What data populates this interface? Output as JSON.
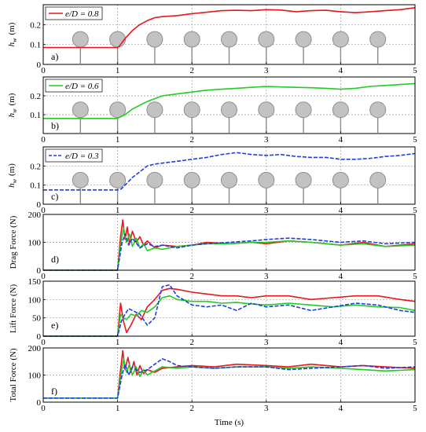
{
  "chart_data": [
    {
      "type": "line",
      "panel_label": "a)",
      "ylabel": "h_w (m)",
      "ylabel_main": "h",
      "ylabel_sub": "w",
      "ylabel_unit": "(m)",
      "ylim": [
        0,
        0.3
      ],
      "xlim": [
        0,
        5
      ],
      "yticks": [
        0,
        0.1,
        0.2
      ],
      "ytick_labels": [
        "0",
        "0.1",
        "0.2"
      ],
      "xticks": [
        0,
        1,
        2,
        3,
        4,
        5
      ],
      "xtick_labels": [
        "0",
        "1",
        "2",
        "3",
        "4",
        "5"
      ],
      "grid": true,
      "legend_position": "top-left",
      "cylinder_count": 9,
      "series": [
        {
          "name": "e/D = 0.8",
          "color": "#e8171c",
          "style": "solid",
          "x": [
            0,
            0.5,
            1.0,
            1.02,
            1.1,
            1.2,
            1.3,
            1.4,
            1.5,
            1.6,
            1.8,
            2.0,
            2.2,
            2.4,
            2.6,
            2.8,
            3.0,
            3.2,
            3.4,
            3.6,
            3.8,
            4.0,
            4.2,
            4.4,
            4.6,
            4.8,
            5.0
          ],
          "y": [
            0.085,
            0.085,
            0.085,
            0.09,
            0.13,
            0.17,
            0.2,
            0.22,
            0.235,
            0.24,
            0.245,
            0.255,
            0.262,
            0.27,
            0.272,
            0.27,
            0.275,
            0.273,
            0.265,
            0.27,
            0.272,
            0.265,
            0.26,
            0.265,
            0.27,
            0.275,
            0.285
          ]
        }
      ]
    },
    {
      "type": "line",
      "panel_label": "b)",
      "ylabel": "h_w (m)",
      "ylabel_main": "h",
      "ylabel_sub": "w",
      "ylabel_unit": "(m)",
      "ylim": [
        0,
        0.3
      ],
      "xlim": [
        0,
        5
      ],
      "yticks": [
        0.1,
        0.2
      ],
      "ytick_labels": [
        "0.1",
        "0.2"
      ],
      "xticks": [
        0,
        1,
        2,
        3,
        4,
        5
      ],
      "xtick_labels": [
        "0",
        "1",
        "2",
        "3",
        "4",
        "5"
      ],
      "grid": true,
      "legend_position": "top-left",
      "cylinder_count": 9,
      "series": [
        {
          "name": "e/D = 0.6",
          "color": "#22cc22",
          "style": "solid",
          "x": [
            0,
            0.5,
            1.0,
            1.02,
            1.1,
            1.2,
            1.3,
            1.4,
            1.5,
            1.6,
            1.8,
            2.0,
            2.2,
            2.4,
            2.6,
            2.8,
            3.0,
            3.2,
            3.4,
            3.6,
            3.8,
            4.0,
            4.2,
            4.4,
            4.6,
            4.8,
            5.0
          ],
          "y": [
            0.08,
            0.08,
            0.08,
            0.085,
            0.1,
            0.13,
            0.15,
            0.17,
            0.185,
            0.2,
            0.21,
            0.22,
            0.23,
            0.235,
            0.24,
            0.245,
            0.25,
            0.247,
            0.245,
            0.243,
            0.24,
            0.235,
            0.24,
            0.25,
            0.255,
            0.26,
            0.265
          ]
        }
      ]
    },
    {
      "type": "line",
      "panel_label": "c)",
      "ylabel": "h_w (m)",
      "ylabel_main": "h",
      "ylabel_sub": "w",
      "ylabel_unit": "(m)",
      "ylim": [
        0,
        0.3
      ],
      "xlim": [
        0,
        5
      ],
      "yticks": [
        0,
        0.1,
        0.2
      ],
      "ytick_labels": [
        "0",
        "0.1",
        "0.2"
      ],
      "xticks": [
        0,
        1,
        2,
        3,
        4,
        5
      ],
      "xtick_labels": [
        "0",
        "1",
        "2",
        "3",
        "4",
        "5"
      ],
      "grid": true,
      "legend_position": "top-left",
      "cylinder_count": 9,
      "series": [
        {
          "name": "e/D = 0.3",
          "color": "#1f3fe0",
          "style": "dashed",
          "x": [
            0,
            0.5,
            1.0,
            1.05,
            1.1,
            1.2,
            1.3,
            1.4,
            1.5,
            1.6,
            1.8,
            2.0,
            2.2,
            2.4,
            2.6,
            2.8,
            3.0,
            3.2,
            3.4,
            3.6,
            3.8,
            4.0,
            4.2,
            4.4,
            4.6,
            4.8,
            5.0
          ],
          "y": [
            0.075,
            0.075,
            0.075,
            0.08,
            0.1,
            0.14,
            0.17,
            0.2,
            0.21,
            0.215,
            0.225,
            0.235,
            0.245,
            0.26,
            0.27,
            0.26,
            0.255,
            0.26,
            0.25,
            0.245,
            0.245,
            0.235,
            0.235,
            0.24,
            0.25,
            0.255,
            0.265
          ]
        }
      ]
    },
    {
      "type": "line",
      "panel_label": "d)",
      "ylabel": "Drag Force (N)",
      "ylim": [
        0,
        200
      ],
      "xlim": [
        0,
        5
      ],
      "yticks": [
        0,
        100,
        200
      ],
      "ytick_labels": [
        "0",
        "100",
        "200"
      ],
      "xticks": [
        0,
        1,
        2,
        3,
        4,
        5
      ],
      "xtick_labels": [
        "0",
        "1",
        "2",
        "3",
        "4",
        "5"
      ],
      "grid": true,
      "series": [
        {
          "name": "e/D = 0.8",
          "color": "#e8171c",
          "style": "solid",
          "x": [
            0,
            0.5,
            1.0,
            1.04,
            1.07,
            1.1,
            1.13,
            1.16,
            1.2,
            1.25,
            1.3,
            1.35,
            1.4,
            1.5,
            1.6,
            1.8,
            2.0,
            2.2,
            2.5,
            2.8,
            3.0,
            3.3,
            3.6,
            4.0,
            4.3,
            4.6,
            5.0
          ],
          "y": [
            0,
            0,
            0,
            120,
            180,
            110,
            155,
            95,
            140,
            100,
            120,
            90,
            105,
            80,
            90,
            85,
            90,
            100,
            95,
            100,
            95,
            105,
            100,
            90,
            100,
            85,
            95
          ]
        },
        {
          "name": "e/D = 0.6",
          "color": "#22cc22",
          "style": "solid",
          "x": [
            0,
            0.5,
            1.0,
            1.05,
            1.08,
            1.12,
            1.16,
            1.2,
            1.25,
            1.3,
            1.35,
            1.4,
            1.5,
            1.6,
            1.8,
            2.0,
            2.2,
            2.5,
            2.8,
            3.0,
            3.3,
            3.6,
            4.0,
            4.3,
            4.6,
            5.0
          ],
          "y": [
            0,
            0,
            0,
            110,
            150,
            100,
            130,
            85,
            115,
            80,
            95,
            70,
            80,
            75,
            85,
            90,
            95,
            95,
            100,
            100,
            105,
            100,
            90,
            95,
            85,
            90
          ]
        },
        {
          "name": "e/D = 0.3",
          "color": "#1f3fe0",
          "style": "dashed",
          "x": [
            0,
            0.5,
            1.0,
            1.06,
            1.1,
            1.15,
            1.2,
            1.3,
            1.4,
            1.5,
            1.6,
            1.8,
            2.0,
            2.2,
            2.5,
            2.8,
            3.0,
            3.3,
            3.6,
            4.0,
            4.3,
            4.6,
            5.0
          ],
          "y": [
            0,
            0,
            0,
            100,
            130,
            90,
            115,
            80,
            95,
            85,
            90,
            80,
            90,
            95,
            100,
            105,
            110,
            115,
            110,
            100,
            105,
            95,
            100
          ]
        }
      ]
    },
    {
      "type": "line",
      "panel_label": "e)",
      "ylabel": "Lift Force (N)",
      "ylim": [
        0,
        150
      ],
      "xlim": [
        0,
        5
      ],
      "yticks": [
        0,
        50,
        100,
        150
      ],
      "ytick_labels": [
        "0",
        "50",
        "100",
        "150"
      ],
      "xticks": [
        0,
        1,
        2,
        3,
        4,
        5
      ],
      "xtick_labels": [
        "0",
        "1",
        "2",
        "3",
        "4",
        "5"
      ],
      "grid": true,
      "series": [
        {
          "name": "e/D = 0.8",
          "color": "#e8171c",
          "style": "solid",
          "x": [
            0,
            0.5,
            1.0,
            1.04,
            1.08,
            1.12,
            1.18,
            1.25,
            1.32,
            1.4,
            1.5,
            1.6,
            1.7,
            1.8,
            2.0,
            2.2,
            2.4,
            2.6,
            2.8,
            3.0,
            3.3,
            3.6,
            3.9,
            4.2,
            4.5,
            4.8,
            5.0
          ],
          "y": [
            0,
            0,
            0,
            90,
            40,
            10,
            30,
            60,
            45,
            80,
            100,
            125,
            130,
            128,
            120,
            115,
            110,
            110,
            105,
            110,
            110,
            100,
            105,
            110,
            110,
            100,
            95
          ]
        },
        {
          "name": "e/D = 0.6",
          "color": "#22cc22",
          "style": "solid",
          "x": [
            0,
            0.5,
            1.0,
            1.04,
            1.08,
            1.12,
            1.18,
            1.25,
            1.32,
            1.4,
            1.5,
            1.6,
            1.7,
            1.8,
            2.0,
            2.2,
            2.4,
            2.6,
            2.8,
            3.0,
            3.3,
            3.6,
            3.9,
            4.2,
            4.5,
            4.8,
            5.0
          ],
          "y": [
            0,
            0,
            0,
            60,
            50,
            45,
            60,
            55,
            70,
            65,
            80,
            105,
            110,
            100,
            95,
            95,
            90,
            92,
            88,
            85,
            90,
            85,
            80,
            85,
            80,
            78,
            70
          ]
        },
        {
          "name": "e/D = 0.3",
          "color": "#1f3fe0",
          "style": "dashed",
          "x": [
            0,
            0.5,
            1.0,
            1.05,
            1.1,
            1.15,
            1.2,
            1.3,
            1.4,
            1.5,
            1.6,
            1.7,
            1.8,
            2.0,
            2.2,
            2.4,
            2.6,
            2.8,
            3.0,
            3.3,
            3.6,
            3.9,
            4.2,
            4.5,
            4.8,
            5.0
          ],
          "y": [
            0,
            0,
            0,
            40,
            60,
            75,
            70,
            60,
            30,
            50,
            135,
            140,
            110,
            85,
            80,
            85,
            70,
            90,
            80,
            85,
            70,
            80,
            90,
            85,
            70,
            65
          ]
        }
      ]
    },
    {
      "type": "line",
      "panel_label": "f)",
      "ylabel": "Total Force (N)",
      "ylim": [
        0,
        200
      ],
      "xlim": [
        0,
        5
      ],
      "yticks": [
        0,
        100,
        200
      ],
      "ytick_labels": [
        "0",
        "100",
        "200"
      ],
      "xticks": [
        0,
        1,
        2,
        3,
        4,
        5
      ],
      "xtick_labels": [
        "0",
        "1",
        "2",
        "3",
        "4",
        "5"
      ],
      "xlabel": "Time (s)",
      "grid": true,
      "series": [
        {
          "name": "e/D = 0.8",
          "color": "#e8171c",
          "style": "solid",
          "x": [
            0,
            0.5,
            1.0,
            1.04,
            1.07,
            1.1,
            1.14,
            1.18,
            1.22,
            1.26,
            1.3,
            1.35,
            1.4,
            1.5,
            1.6,
            1.8,
            2.0,
            2.3,
            2.6,
            3.0,
            3.3,
            3.6,
            4.0,
            4.3,
            4.6,
            5.0
          ],
          "y": [
            15,
            15,
            15,
            120,
            190,
            120,
            165,
            110,
            150,
            100,
            135,
            105,
            120,
            110,
            125,
            130,
            135,
            130,
            140,
            135,
            130,
            140,
            130,
            135,
            130,
            125
          ]
        },
        {
          "name": "e/D = 0.6",
          "color": "#22cc22",
          "style": "solid",
          "x": [
            0,
            0.5,
            1.0,
            1.05,
            1.08,
            1.12,
            1.16,
            1.2,
            1.25,
            1.3,
            1.35,
            1.4,
            1.5,
            1.6,
            1.8,
            2.0,
            2.3,
            2.6,
            3.0,
            3.3,
            3.6,
            4.0,
            4.3,
            4.6,
            5.0
          ],
          "y": [
            15,
            15,
            15,
            110,
            160,
            110,
            140,
            100,
            130,
            95,
            120,
            100,
            115,
            130,
            125,
            130,
            125,
            130,
            130,
            125,
            130,
            125,
            120,
            115,
            120
          ]
        },
        {
          "name": "e/D = 0.3",
          "color": "#1f3fe0",
          "style": "dashed",
          "x": [
            0,
            0.5,
            1.0,
            1.06,
            1.1,
            1.15,
            1.2,
            1.3,
            1.4,
            1.5,
            1.6,
            1.7,
            1.8,
            2.0,
            2.3,
            2.6,
            3.0,
            3.3,
            3.6,
            4.0,
            4.3,
            4.6,
            5.0
          ],
          "y": [
            15,
            15,
            15,
            100,
            140,
            100,
            130,
            110,
            120,
            140,
            160,
            150,
            135,
            130,
            125,
            130,
            130,
            120,
            125,
            130,
            135,
            125,
            130
          ]
        }
      ]
    }
  ]
}
